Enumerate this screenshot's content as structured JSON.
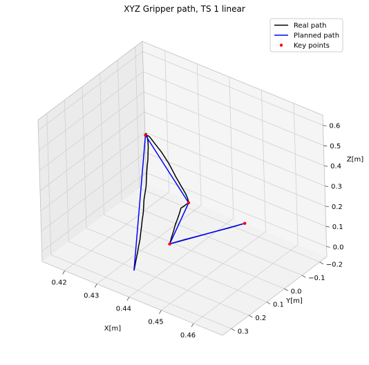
{
  "chart_data": {
    "type": "line",
    "title": "XYZ Gripper path, TS 1 linear",
    "xlabel": "X[m]",
    "ylabel": "Y[m]",
    "zlabel": "Z[m]",
    "x_ticks": [
      "0.42",
      "0.43",
      "0.44",
      "0.45",
      "0.46"
    ],
    "y_ticks": [
      "−0.2",
      "−0.1",
      "0.0",
      "0.1",
      "0.2",
      "0.3"
    ],
    "z_ticks": [
      "0.0",
      "0.1",
      "0.2",
      "0.3",
      "0.4",
      "0.5",
      "0.6"
    ],
    "xlim": [
      0.413,
      0.469
    ],
    "ylim": [
      -0.24,
      0.35
    ],
    "zlim": [
      -0.05,
      0.65
    ],
    "grid": true,
    "legend_position": "top-right",
    "legend": [
      "Real path",
      "Planned path",
      "Key points"
    ],
    "colors": {
      "real": "#000000",
      "planned": "#0000ff",
      "key": "#ff0000"
    },
    "series": [
      {
        "name": "Real path",
        "points": [
          [
            0.4361,
            0.25,
            -0.01
          ],
          [
            0.4358,
            0.24,
            0.0
          ],
          [
            0.4357,
            0.232,
            0.02
          ],
          [
            0.4356,
            0.22,
            0.05
          ],
          [
            0.4356,
            0.212,
            0.08
          ],
          [
            0.4357,
            0.205,
            0.11
          ],
          [
            0.4357,
            0.2,
            0.14
          ],
          [
            0.4358,
            0.196,
            0.17
          ],
          [
            0.4358,
            0.191,
            0.2
          ],
          [
            0.4359,
            0.186,
            0.23
          ],
          [
            0.4358,
            0.181,
            0.26
          ],
          [
            0.4357,
            0.176,
            0.29
          ],
          [
            0.4358,
            0.171,
            0.32
          ],
          [
            0.4359,
            0.166,
            0.35
          ],
          [
            0.4358,
            0.161,
            0.38
          ],
          [
            0.4357,
            0.157,
            0.41
          ],
          [
            0.4357,
            0.153,
            0.44
          ],
          [
            0.4358,
            0.15,
            0.47
          ],
          [
            0.4358,
            0.148,
            0.5
          ],
          [
            0.4359,
            0.148,
            0.53
          ],
          [
            0.436,
            0.15,
            0.56
          ],
          [
            0.4362,
            0.156,
            0.585
          ],
          [
            0.4364,
            0.162,
            0.6
          ],
          [
            0.4366,
            0.168,
            0.615
          ],
          [
            0.437,
            0.176,
            0.625
          ],
          [
            0.4373,
            0.184,
            0.63
          ],
          [
            0.4376,
            0.192,
            0.638
          ],
          [
            0.4381,
            0.2,
            0.64
          ],
          [
            0.4376,
            0.176,
            0.618
          ],
          [
            0.4371,
            0.158,
            0.596
          ],
          [
            0.4373,
            0.146,
            0.57
          ],
          [
            0.4375,
            0.134,
            0.545
          ],
          [
            0.4377,
            0.122,
            0.52
          ],
          [
            0.4379,
            0.11,
            0.495
          ],
          [
            0.4381,
            0.1,
            0.47
          ],
          [
            0.4383,
            0.09,
            0.445
          ],
          [
            0.4385,
            0.08,
            0.42
          ],
          [
            0.4387,
            0.072,
            0.395
          ],
          [
            0.4389,
            0.064,
            0.37
          ],
          [
            0.4391,
            0.056,
            0.345
          ],
          [
            0.4394,
            0.048,
            0.32
          ],
          [
            0.4397,
            0.04,
            0.295
          ],
          [
            0.44,
            0.032,
            0.27
          ],
          [
            0.4403,
            0.024,
            0.245
          ],
          [
            0.4405,
            0.018,
            0.22
          ],
          [
            0.4406,
            0.016,
            0.2
          ],
          [
            0.4397,
            0.012,
            0.185
          ],
          [
            0.4386,
            0.01,
            0.165
          ],
          [
            0.4377,
            0.008,
            0.15
          ],
          [
            0.4374,
            0.012,
            0.125
          ],
          [
            0.4371,
            0.018,
            0.1
          ],
          [
            0.4368,
            0.026,
            0.075
          ],
          [
            0.4366,
            0.034,
            0.045
          ],
          [
            0.4364,
            0.042,
            0.02
          ],
          [
            0.4363,
            0.048,
            0.0
          ],
          [
            0.4362,
            0.05,
            -0.01
          ],
          [
            0.4365,
            0.04,
            -0.01
          ],
          [
            0.438,
            0.0,
            -0.01
          ],
          [
            0.44,
            -0.05,
            -0.01
          ],
          [
            0.442,
            -0.1,
            -0.01
          ],
          [
            0.444,
            -0.15,
            -0.01
          ],
          [
            0.4458,
            -0.2,
            -0.01
          ]
        ]
      },
      {
        "name": "Planned path",
        "points": [
          [
            0.4361,
            0.25,
            -0.01
          ],
          [
            0.4381,
            0.2,
            0.64
          ],
          [
            0.4406,
            0.016,
            0.2
          ],
          [
            0.4362,
            0.05,
            -0.01
          ],
          [
            0.4458,
            -0.2,
            -0.01
          ]
        ]
      },
      {
        "name": "Key points",
        "points": [
          [
            0.4381,
            0.2,
            0.64
          ],
          [
            0.4406,
            0.016,
            0.2
          ],
          [
            0.4362,
            0.05,
            -0.01
          ],
          [
            0.4458,
            -0.2,
            -0.01
          ]
        ]
      }
    ]
  }
}
